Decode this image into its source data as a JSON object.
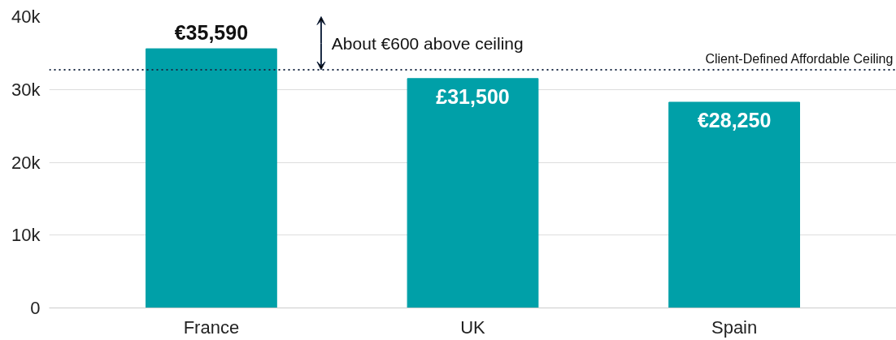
{
  "chart_data": {
    "type": "bar",
    "categories": [
      "France",
      "UK",
      "Spain"
    ],
    "values": [
      35590,
      31500,
      28250
    ],
    "value_labels": [
      "€35,590",
      "£31,500",
      "€28,250"
    ],
    "color": "#00a0a8",
    "ylim": [
      0,
      40000
    ],
    "yticks": [
      {
        "value": 0,
        "label": "0"
      },
      {
        "value": 10000,
        "label": "10k"
      },
      {
        "value": 20000,
        "label": "20k"
      },
      {
        "value": 30000,
        "label": "30k"
      },
      {
        "value": 40000,
        "label": "40k"
      }
    ],
    "grid": "y",
    "ref_lines": [
      {
        "axis": "y",
        "value": 32700,
        "label": "Client-Defined Affordable Ceiling",
        "color": "#1a2a44",
        "line_style": "dotted"
      }
    ],
    "annotations": [
      "About €600 above ceiling"
    ]
  }
}
